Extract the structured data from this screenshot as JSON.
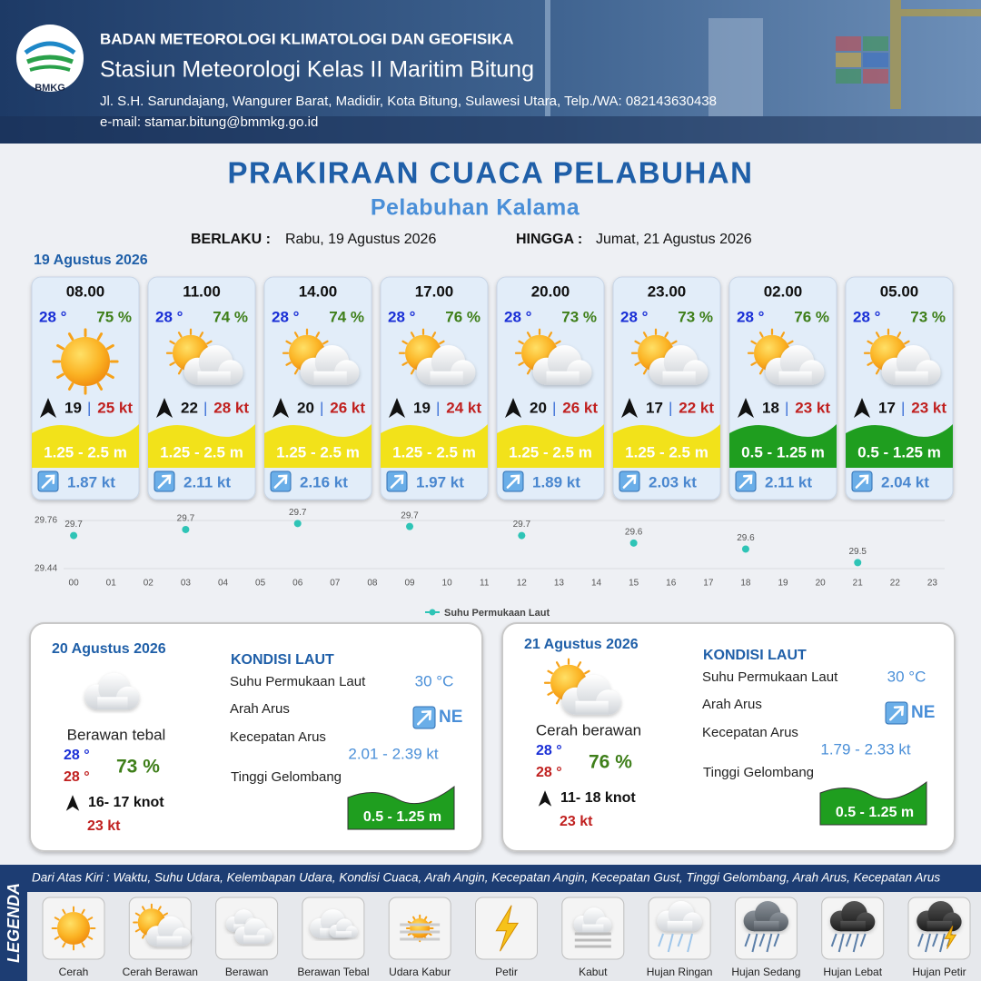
{
  "header": {
    "agency": "BADAN METEOROLOGI KLIMATOLOGI DAN GEOFISIKA",
    "station": "Stasiun Meteorologi Kelas II Maritim Bitung",
    "address": "Jl. S.H. Sarundajang, Wangurer Barat, Madidir, Kota Bitung, Sulawesi Utara, Telp./WA: 082143630438",
    "email": "e-mail: stamar.bitung@bmmkg.go.id",
    "logo": "BMKG"
  },
  "title": "PRAKIRAAN CUACA PELABUHAN",
  "subtitle": "Pelabuhan Kalama",
  "validity": {
    "from_label": "BERLAKU :",
    "from": "Rabu, 19 Agustus 2026",
    "to_label": "HINGGA :",
    "to": "Jumat, 21 Agustus 2026"
  },
  "today": {
    "date": "19 Agustus 2026",
    "wind_separator": "|",
    "forecasts": [
      {
        "time": "08.00",
        "temp": "28 °",
        "humidity": "75 %",
        "wind": "19",
        "gust": "25 kt",
        "wave": "1.25 - 2.5 m",
        "current": "1.87 kt"
      },
      {
        "time": "11.00",
        "temp": "28 °",
        "humidity": "74 %",
        "wind": "22",
        "gust": "28 kt",
        "wave": "1.25 - 2.5 m",
        "current": "2.11 kt"
      },
      {
        "time": "14.00",
        "temp": "28 °",
        "humidity": "74 %",
        "wind": "20",
        "gust": "26 kt",
        "wave": "1.25 - 2.5 m",
        "current": "2.16 kt"
      },
      {
        "time": "17.00",
        "temp": "28 °",
        "humidity": "76 %",
        "wind": "19",
        "gust": "24 kt",
        "wave": "1.25 - 2.5 m",
        "current": "1.97 kt"
      },
      {
        "time": "20.00",
        "temp": "28 °",
        "humidity": "73 %",
        "wind": "20",
        "gust": "26 kt",
        "wave": "1.25 - 2.5 m",
        "current": "1.89 kt"
      },
      {
        "time": "23.00",
        "temp": "28 °",
        "humidity": "73 %",
        "wind": "17",
        "gust": "22 kt",
        "wave": "1.25 - 2.5 m",
        "current": "2.03 kt"
      },
      {
        "time": "02.00",
        "temp": "28 °",
        "humidity": "76 %",
        "wind": "18",
        "gust": "23 kt",
        "wave": "0.5 - 1.25 m",
        "current": "2.11 kt"
      },
      {
        "time": "05.00",
        "temp": "28 °",
        "humidity": "73 %",
        "wind": "17",
        "gust": "23 kt",
        "wave": "0.5 - 1.25 m",
        "current": "2.04 kt"
      }
    ]
  },
  "chart_data": {
    "type": "scatter",
    "x": [
      0,
      3,
      6,
      9,
      12,
      15,
      18,
      21
    ],
    "series": [
      {
        "name": "Suhu Permukaan Laut",
        "color": "#2ec4b6",
        "values": [
          29.66,
          29.7,
          29.74,
          29.72,
          29.66,
          29.61,
          29.57,
          29.48
        ],
        "value_labels": [
          "29.7",
          "29.7",
          "29.7",
          "29.7",
          "29.7",
          "29.6",
          "29.6",
          "29.5"
        ]
      }
    ],
    "xlim": [
      -1,
      23.5
    ],
    "xticks": [
      {
        "value": 0,
        "label": "00"
      },
      {
        "value": 1,
        "label": "01"
      },
      {
        "value": 2,
        "label": "02"
      },
      {
        "value": 3,
        "label": "03"
      },
      {
        "value": 4,
        "label": "04"
      },
      {
        "value": 5,
        "label": "05"
      },
      {
        "value": 6,
        "label": "06"
      },
      {
        "value": 7,
        "label": "07"
      },
      {
        "value": 8,
        "label": "08"
      },
      {
        "value": 9,
        "label": "09"
      },
      10,
      11,
      12,
      13,
      14,
      15,
      16,
      17,
      18,
      19,
      20,
      21,
      22,
      23
    ],
    "ylim": [
      29.44,
      29.76
    ],
    "yticks": [
      29.44,
      29.76
    ],
    "grid": true
  },
  "outlook": [
    {
      "date": "20 Agustus 2026",
      "section_title": "KONDISI LAUT",
      "condition": "Berawan tebal",
      "temp_min": "28 °",
      "temp_max": "28 °",
      "humidity": "73 %",
      "wind": "16- 17 knot",
      "gust": "23 kt",
      "sst_label": "Suhu Permukaan Laut",
      "sst": "30 °C",
      "direction_label": "Arah Arus",
      "direction": "NE",
      "speed_label": "Kecepatan Arus",
      "speed": "2.01 - 2.39 kt",
      "wave_label": "Tinggi Gelombang",
      "wave": "0.5 - 1.25 m"
    },
    {
      "date": "21 Agustus 2026",
      "section_title": "KONDISI LAUT",
      "condition": "Cerah berawan",
      "temp_min": "28 °",
      "temp_max": "28 °",
      "humidity": "76 %",
      "wind": "11- 18 knot",
      "gust": "23 kt",
      "sst_label": "Suhu Permukaan Laut",
      "sst": "30 °C",
      "direction_label": "Arah Arus",
      "direction": "NE",
      "speed_label": "Kecepatan Arus",
      "speed": "1.79 - 2.33 kt",
      "wave_label": "Tinggi Gelombang",
      "wave": "0.5 - 1.25 m"
    }
  ],
  "legend": {
    "title": "LEGENDA",
    "description": "Dari Atas Kiri : Waktu, Suhu Udara, Kelembapan Udara, Kondisi Cuaca, Arah Angin, Kecepatan Angin, Kecepatan Gust, Tinggi Gelombang, Arah Arus, Kecepatan Arus",
    "items": [
      "Cerah",
      "Cerah Berawan",
      "Berawan",
      "Berawan Tebal",
      "Udara Kabur",
      "Petir",
      "Kabut",
      "Hujan Ringan",
      "Hujan Sedang",
      "Hujan Lebat",
      "Hujan Petir"
    ]
  }
}
